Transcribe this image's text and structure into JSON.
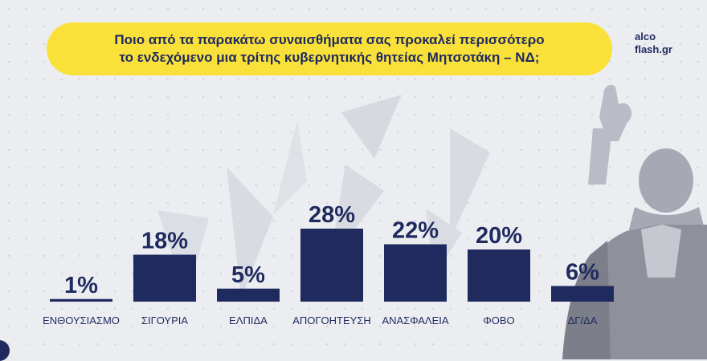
{
  "header": {
    "title_line1": "Ποιο από τα παρακάτω συναισθήματα σας προκαλεί περισσότερο",
    "title_line2": "το ενδεχόμενο μια τρίτης κυβερνητικής θητείας Μητσοτάκη – ΝΔ;"
  },
  "brand": {
    "line1": "alco",
    "line2": "flash.gr"
  },
  "colors": {
    "bar": "#1f2a5e",
    "title_bg": "#fae13a",
    "background": "#ecedf1"
  },
  "chart_data": {
    "type": "bar",
    "categories": [
      "ΕΝΘΟΥΣΙΑΣΜΟ",
      "ΣΙΓΟΥΡΙΑ",
      "ΕΛΠΙΔΑ",
      "ΑΠΟΓΟΗΤΕΥΣΗ",
      "ΑΝΑΣΦΑΛΕΙΑ",
      "ΦΟΒΟ",
      "ΔΓ/ΔΑ"
    ],
    "values": [
      1,
      18,
      5,
      28,
      22,
      20,
      6
    ],
    "labels": [
      "1%",
      "18%",
      "5%",
      "28%",
      "22%",
      "20%",
      "6%"
    ],
    "unit": "%",
    "grid": false
  }
}
